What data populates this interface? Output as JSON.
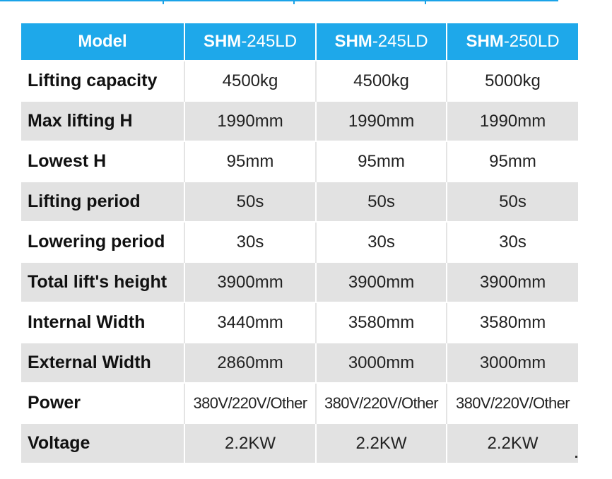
{
  "table": {
    "header": {
      "first": "Model",
      "models": [
        {
          "prefix": "SHM",
          "suffix": "-245LD"
        },
        {
          "prefix": "SHM",
          "suffix": "-245LD"
        },
        {
          "prefix": "SHM",
          "suffix": "-250LD"
        }
      ]
    },
    "rows": [
      {
        "label": "Lifting capacity",
        "values": [
          "4500kg",
          "4500kg",
          "5000kg"
        ]
      },
      {
        "label": "Max lifting H",
        "values": [
          "1990mm",
          "1990mm",
          "1990mm"
        ]
      },
      {
        "label": "Lowest H",
        "values": [
          "95mm",
          "95mm",
          "95mm"
        ]
      },
      {
        "label": "Lifting period",
        "values": [
          "50s",
          "50s",
          "50s"
        ]
      },
      {
        "label": "Lowering period",
        "values": [
          "30s",
          "30s",
          "30s"
        ]
      },
      {
        "label": "Total lift's height",
        "values": [
          "3900mm",
          "3900mm",
          "3900mm"
        ]
      },
      {
        "label": "Internal Width",
        "values": [
          "3440mm",
          "3580mm",
          "3580mm"
        ]
      },
      {
        "label": "External Width",
        "values": [
          "2860mm",
          "3000mm",
          "3000mm"
        ]
      },
      {
        "label": "Power",
        "values": [
          "380V/220V/Other",
          "380V/220V/Other",
          "380V/220V/Other"
        ]
      },
      {
        "label": "Voltage",
        "values": [
          "2.2KW",
          "2.2KW",
          "2.2KW"
        ]
      }
    ]
  },
  "colors": {
    "header_bg": "#1ea8ea",
    "header_text": "#ffffff",
    "row_alt_bg": "#e2e2e2",
    "row_bg": "#ffffff"
  }
}
